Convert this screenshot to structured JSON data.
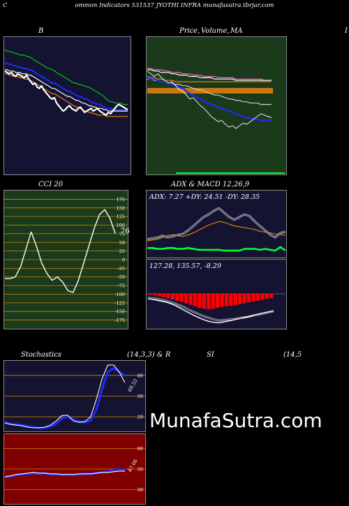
{
  "page": {
    "title_left": "C",
    "title": "ommon  Indicators 531537 JYOTHI INFRA munafasutra.tbrjar.com",
    "watermark": "MunafaSutra.com"
  },
  "panels": {
    "bb": {
      "label": "B"
    },
    "price": {
      "label": "Price,",
      "label2": "Volume,",
      "label3": "MA",
      "label_right": "I"
    },
    "cci": {
      "label": "CCI 20",
      "last_value_label": "76"
    },
    "adx": {
      "label": "ADX  & MACD 12,26,9",
      "readout": "ADX: 7.27 +DY: 24.51 -DY: 28.35"
    },
    "macd": {
      "readout": "127.28,  135.57,  -8.29"
    },
    "stoch": {
      "label": "Stochastics",
      "label_mid": "(14,3,3) & R",
      "label_rsi": "SI",
      "label_right": "(14,5",
      "last_value_label": "69.52"
    },
    "rsi": {
      "last_value_label": "47.06"
    }
  },
  "colors": {
    "navy_bg": "#141432",
    "green_bg": "#1b3a1b",
    "red_bg": "#800000",
    "blue": "#1d2bff",
    "orange": "#e8820c",
    "bright_green": "#00ff33",
    "red_bar": "#ff0000"
  },
  "chart_data": [
    {
      "type": "line",
      "title": "B",
      "series": [
        {
          "color": "#00cc00",
          "values": [
            92,
            91,
            91,
            90,
            90,
            89,
            89,
            88,
            88,
            88,
            87,
            87,
            86,
            85,
            84,
            83,
            82,
            81,
            80,
            79,
            78,
            78,
            77,
            76,
            75,
            74,
            73,
            72,
            71,
            70,
            69,
            68,
            67,
            67,
            66,
            66,
            65,
            65,
            64,
            64,
            63,
            62,
            61,
            60,
            59,
            58,
            57,
            55,
            54,
            53,
            53,
            52,
            52,
            52,
            52,
            51,
            51,
            51
          ]
        },
        {
          "color": "#1d2bff",
          "values": [
            82,
            82,
            81,
            81,
            80,
            80,
            79,
            79,
            78,
            78,
            78,
            77,
            77,
            76,
            75,
            74,
            73,
            72,
            71,
            70,
            69,
            68,
            67,
            67,
            66,
            65,
            64,
            63,
            62,
            61,
            61,
            60,
            59,
            58,
            57,
            57,
            56,
            55,
            55,
            54,
            53,
            52,
            52,
            51,
            51,
            50,
            49,
            48,
            48,
            48,
            47,
            47,
            47,
            47,
            47,
            47,
            47,
            47
          ]
        },
        {
          "color": "#ffffff",
          "values": [
            77,
            77,
            76,
            76,
            76,
            75,
            75,
            75,
            74,
            74,
            74,
            73,
            73,
            72,
            71,
            70,
            69,
            68,
            67,
            66,
            65,
            64,
            63,
            63,
            62,
            61,
            60,
            59,
            58,
            57,
            57,
            56,
            55,
            54,
            54,
            53,
            52,
            52,
            51,
            50,
            50,
            49,
            49,
            48,
            48,
            48,
            47,
            47,
            46,
            46,
            46,
            46,
            46,
            46,
            46,
            46,
            46,
            46
          ]
        },
        {
          "color": "#e8820c",
          "values": [
            74,
            74,
            73,
            73,
            72,
            72,
            72,
            71,
            71,
            70,
            70,
            70,
            69,
            68,
            67,
            66,
            65,
            64,
            63,
            62,
            61,
            60,
            59,
            59,
            58,
            57,
            56,
            55,
            54,
            53,
            52,
            51,
            50,
            49,
            49,
            48,
            47,
            46,
            46,
            45,
            45,
            44,
            44,
            43,
            43,
            43,
            43,
            42,
            42,
            42,
            42,
            42,
            42,
            42,
            42,
            42,
            42,
            42
          ]
        },
        {
          "color": "#ffffff",
          "values": [
            76,
            75,
            74,
            75,
            73,
            72,
            74,
            73,
            72,
            71,
            73,
            70,
            68,
            66,
            67,
            64,
            63,
            65,
            62,
            60,
            58,
            56,
            55,
            56,
            52,
            50,
            48,
            46,
            47,
            49,
            50,
            48,
            47,
            46,
            48,
            49,
            47,
            45,
            46,
            47,
            48,
            46,
            47,
            48,
            46,
            45,
            44,
            43,
            45,
            44,
            46,
            48,
            50,
            51,
            50,
            49,
            48,
            47
          ]
        }
      ]
    },
    {
      "type": "line",
      "title": "Price, Volume, MA",
      "series": [
        {
          "color": "#ff66cc",
          "values": [
            78,
            78,
            77,
            77,
            77,
            76,
            76,
            75,
            75,
            75,
            74,
            74,
            74,
            73,
            73,
            73,
            72,
            72,
            72,
            72,
            71,
            71,
            71,
            71,
            71,
            70,
            70,
            70,
            70,
            70,
            70,
            70,
            70,
            69,
            69,
            69
          ]
        },
        {
          "color": "#ffffff",
          "values": [
            77,
            77,
            76,
            76,
            75,
            75,
            75,
            74,
            74,
            73,
            73,
            73,
            72,
            72,
            72,
            71,
            71,
            71,
            71,
            70,
            70,
            70,
            70,
            70,
            70,
            69,
            69,
            69,
            69,
            69,
            69,
            69,
            69,
            69,
            69,
            69
          ]
        },
        {
          "color": "#e8820c",
          "values": [
            72,
            71,
            71,
            70,
            70,
            69,
            69,
            69,
            68,
            68,
            68,
            68,
            68,
            68,
            68,
            68,
            68,
            68,
            68,
            68,
            68,
            68,
            68,
            68,
            68,
            68,
            68,
            68,
            68,
            68,
            68,
            68,
            68,
            68,
            68,
            68
          ]
        },
        {
          "color": "#cccccc",
          "values": [
            70,
            70,
            69,
            69,
            68,
            68,
            67,
            67,
            66,
            66,
            65,
            65,
            64,
            63,
            62,
            62,
            61,
            60,
            59,
            58,
            58,
            57,
            56,
            55,
            55,
            54,
            54,
            53,
            53,
            52,
            52,
            52,
            51,
            51,
            51,
            51
          ]
        },
        {
          "color": "#1d2bff",
          "values": [
            71,
            70,
            70,
            69,
            68,
            68,
            67,
            66,
            65,
            64,
            63,
            61,
            59,
            58,
            56,
            55,
            53,
            52,
            51,
            50,
            49,
            48,
            47,
            46,
            45,
            44,
            43,
            42,
            41,
            41,
            40,
            40,
            39,
            39,
            39,
            39
          ]
        },
        {
          "color": "#ffffff",
          "values": [
            76,
            74,
            72,
            74,
            71,
            69,
            67,
            68,
            65,
            62,
            61,
            58,
            55,
            56,
            53,
            50,
            48,
            45,
            42,
            40,
            38,
            39,
            36,
            34,
            35,
            33,
            35,
            37,
            36,
            38,
            40,
            42,
            44,
            43,
            42,
            41
          ]
        }
      ]
    },
    {
      "type": "line",
      "title": "CCI 20",
      "yticks": [
        175,
        150,
        125,
        100,
        75,
        50,
        25,
        0,
        -25,
        -50,
        -75,
        -100,
        -125,
        -150,
        -175
      ],
      "ylim": [
        -190,
        190
      ],
      "series": [
        {
          "color": "#ffffff",
          "values": [
            -55,
            -55,
            -50,
            -20,
            30,
            80,
            40,
            -10,
            -40,
            -60,
            -50,
            -65,
            -90,
            -95,
            -60,
            -10,
            40,
            90,
            130,
            145,
            120,
            76
          ]
        }
      ]
    },
    {
      "type": "line",
      "title": "ADX & MACD 12,26,9",
      "series": [
        {
          "name": "+DY",
          "color": "#e8820c",
          "values": [
            18,
            19,
            20,
            22,
            24,
            25,
            24,
            23,
            25,
            27,
            30,
            33,
            36,
            38,
            40,
            39,
            37,
            35,
            34,
            33,
            32,
            31,
            29,
            28,
            27,
            26,
            25,
            24.51
          ]
        },
        {
          "name": "-DY",
          "color": "#ffffff",
          "values": [
            20,
            21,
            22,
            24,
            22,
            23,
            25,
            26,
            30,
            35,
            40,
            45,
            48,
            52,
            55,
            50,
            45,
            42,
            45,
            48,
            46,
            40,
            35,
            30,
            25,
            22,
            27,
            28.35
          ]
        },
        {
          "name": "ADX",
          "color": "#00ff33",
          "values": [
            10,
            10,
            9,
            9,
            10,
            10,
            9,
            9,
            10,
            9,
            8,
            8,
            8,
            8,
            8,
            7,
            7,
            7,
            7,
            9,
            9,
            9,
            8,
            9,
            8,
            7,
            11,
            7.27
          ]
        }
      ]
    },
    {
      "type": "bar",
      "title": "MACD",
      "values": [
        -2,
        -3,
        -5,
        -7,
        -9,
        -11,
        -14,
        -16,
        -19,
        -22,
        -25,
        -28,
        -30,
        -31,
        -30,
        -28,
        -26,
        -25,
        -24,
        -23,
        -21,
        -19,
        -17,
        -15,
        -14,
        -12,
        -10,
        -8.29
      ],
      "macd_line": [
        -10,
        -11,
        -13,
        -15,
        -17,
        -20,
        -24,
        -29,
        -34,
        -39,
        -44,
        -48,
        -52,
        -55,
        -57,
        -58,
        -57,
        -55,
        -53,
        -51,
        -49,
        -47,
        -45,
        -42,
        -40,
        -38,
        -36,
        -34
      ],
      "signal_line": [
        -8,
        -9,
        -10,
        -12,
        -14,
        -17,
        -20,
        -24,
        -28,
        -33,
        -37,
        -41,
        -45,
        -48,
        -51,
        -53,
        -53,
        -52,
        -51,
        -50,
        -48,
        -47,
        -45,
        -43,
        -41,
        -39,
        -37,
        -35
      ]
    },
    {
      "type": "line",
      "title": "Stochastics (14,3,3)",
      "yticks": [
        80,
        50,
        20
      ],
      "ylim": [
        0,
        100
      ],
      "series": [
        {
          "color": "#1d2bff",
          "values": [
            12,
            10,
            9,
            8,
            6,
            5,
            4,
            4,
            6,
            10,
            18,
            20,
            16,
            13,
            12,
            15,
            30,
            60,
            85,
            90,
            85,
            80
          ]
        },
        {
          "color": "#ffffff",
          "values": [
            11,
            9,
            8,
            7,
            5,
            4,
            4,
            5,
            8,
            14,
            22,
            22,
            14,
            12,
            13,
            20,
            45,
            75,
            95,
            95,
            85,
            69.52
          ]
        }
      ]
    },
    {
      "type": "line",
      "title": "RSI",
      "yticks": [
        80,
        50,
        20
      ],
      "ylim": [
        0,
        100
      ],
      "series": [
        {
          "color": "#1d2bff",
          "values": [
            38,
            39,
            41,
            42,
            43,
            44,
            43,
            44,
            42,
            42,
            41,
            42,
            41,
            42,
            43,
            43,
            44,
            45,
            46,
            49,
            50,
            49
          ]
        },
        {
          "color": "#ffffff",
          "values": [
            39,
            40,
            42,
            43,
            44,
            45,
            44,
            44,
            43,
            43,
            42,
            42,
            42,
            43,
            43,
            43,
            44,
            45,
            45,
            46,
            47,
            47.06
          ]
        }
      ]
    }
  ]
}
